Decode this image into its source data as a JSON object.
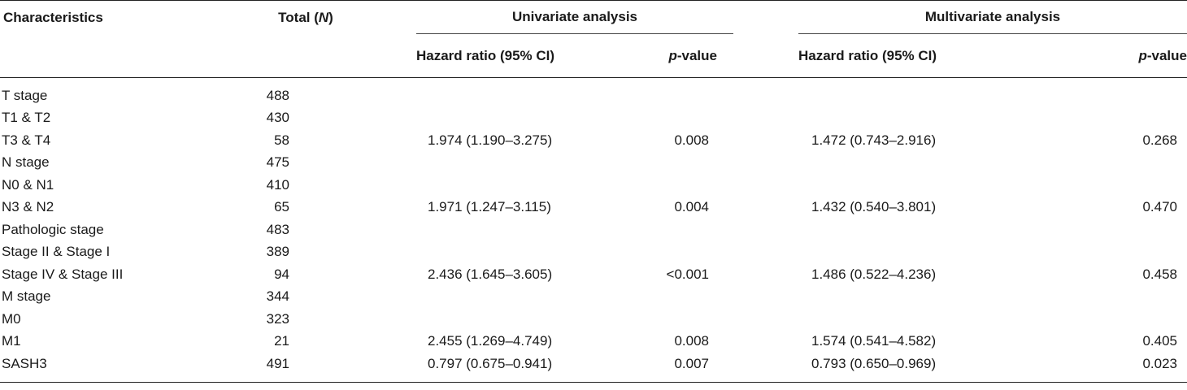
{
  "header": {
    "characteristics": "Characteristics",
    "total_prefix": "Total (",
    "total_italic": "N",
    "total_suffix": ")",
    "univariate": "Univariate analysis",
    "multivariate": "Multivariate analysis",
    "hazard_ratio": "Hazard ratio (95% CI)",
    "p_italic": "p",
    "p_suffix": "-value"
  },
  "rows": [
    {
      "characteristic": "T stage",
      "total": "488",
      "uni_hr": "",
      "uni_p": "",
      "multi_hr": "",
      "multi_p": ""
    },
    {
      "characteristic": "T1 & T2",
      "total": "430",
      "uni_hr": "",
      "uni_p": "",
      "multi_hr": "",
      "multi_p": ""
    },
    {
      "characteristic": "T3 & T4",
      "total": "58",
      "uni_hr": "1.974 (1.190–3.275)",
      "uni_p": "0.008",
      "multi_hr": "1.472 (0.743–2.916)",
      "multi_p": "0.268"
    },
    {
      "characteristic": "N stage",
      "total": "475",
      "uni_hr": "",
      "uni_p": "",
      "multi_hr": "",
      "multi_p": ""
    },
    {
      "characteristic": "N0 & N1",
      "total": "410",
      "uni_hr": "",
      "uni_p": "",
      "multi_hr": "",
      "multi_p": ""
    },
    {
      "characteristic": "N3 & N2",
      "total": "65",
      "uni_hr": "1.971 (1.247–3.115)",
      "uni_p": "0.004",
      "multi_hr": "1.432 (0.540–3.801)",
      "multi_p": "0.470"
    },
    {
      "characteristic": "Pathologic stage",
      "total": "483",
      "uni_hr": "",
      "uni_p": "",
      "multi_hr": "",
      "multi_p": ""
    },
    {
      "characteristic": "Stage II & Stage I",
      "total": "389",
      "uni_hr": "",
      "uni_p": "",
      "multi_hr": "",
      "multi_p": ""
    },
    {
      "characteristic": "Stage IV & Stage III",
      "total": "94",
      "uni_hr": "2.436 (1.645–3.605)",
      "uni_p": "<0.001",
      "multi_hr": "1.486 (0.522–4.236)",
      "multi_p": "0.458"
    },
    {
      "characteristic": "M stage",
      "total": "344",
      "uni_hr": "",
      "uni_p": "",
      "multi_hr": "",
      "multi_p": ""
    },
    {
      "characteristic": "M0",
      "total": "323",
      "uni_hr": "",
      "uni_p": "",
      "multi_hr": "",
      "multi_p": ""
    },
    {
      "characteristic": "M1",
      "total": "21",
      "uni_hr": "2.455 (1.269–4.749)",
      "uni_p": "0.008",
      "multi_hr": "1.574 (0.541–4.582)",
      "multi_p": "0.405"
    },
    {
      "characteristic": "SASH3",
      "total": "491",
      "uni_hr": "0.797 (0.675–0.941)",
      "uni_p": "0.007",
      "multi_hr": "0.793 (0.650–0.969)",
      "multi_p": "0.023"
    }
  ]
}
